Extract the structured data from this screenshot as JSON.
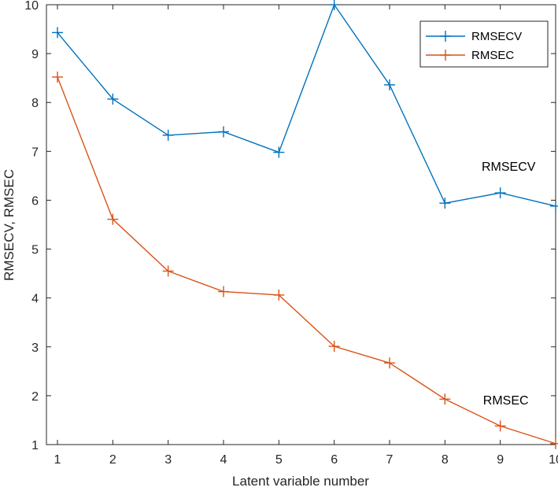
{
  "chart_data": {
    "type": "line",
    "x": [
      1,
      2,
      3,
      4,
      5,
      6,
      7,
      8,
      9,
      10
    ],
    "series": [
      {
        "name": "RMSECV",
        "color": "#0072BD",
        "marker": "plus",
        "values": [
          9.43,
          8.07,
          7.33,
          7.4,
          6.98,
          10.0,
          8.36,
          5.94,
          6.15,
          5.88
        ]
      },
      {
        "name": "RMSEC",
        "color": "#D95319",
        "marker": "plus",
        "values": [
          8.52,
          5.61,
          4.55,
          4.13,
          4.06,
          3.01,
          2.67,
          1.93,
          1.38,
          1.02
        ]
      }
    ],
    "xlabel": "Latent variable number",
    "ylabel": "RMSECV, RMSEC",
    "xlim": [
      1,
      10
    ],
    "ylim": [
      1,
      10
    ],
    "xticks": [
      "1",
      "2",
      "3",
      "4",
      "5",
      "6",
      "7",
      "8",
      "9",
      "10"
    ],
    "yticks": [
      "1",
      "2",
      "3",
      "4",
      "5",
      "6",
      "7",
      "8",
      "9",
      "10"
    ],
    "grid": false,
    "legend": "top-right",
    "annotations": [
      {
        "text": "RMSECV",
        "x": 9.15,
        "y": 6.6
      },
      {
        "text": "RMSEC",
        "x": 9.1,
        "y": 1.82
      }
    ]
  }
}
